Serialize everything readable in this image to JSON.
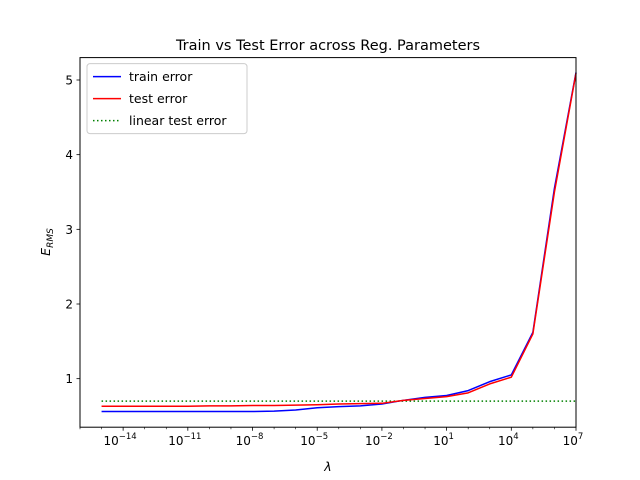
{
  "chart_data": {
    "type": "line",
    "title": "Train vs Test Error across Reg. Parameters",
    "xlabel": "λ",
    "ylabel": {
      "main": "E",
      "sub": "RMS"
    },
    "x_scale": "log",
    "xlim": [
      1e-16,
      10000000.0
    ],
    "ylim": [
      0.35,
      5.3
    ],
    "x_ticks": [
      {
        "value": 1e-14,
        "base": "10",
        "exp": "−14"
      },
      {
        "value": 1e-11,
        "base": "10",
        "exp": "−11"
      },
      {
        "value": 1e-08,
        "base": "10",
        "exp": "−8"
      },
      {
        "value": 1e-05,
        "base": "10",
        "exp": "−5"
      },
      {
        "value": 0.01,
        "base": "10",
        "exp": "−2"
      },
      {
        "value": 10,
        "base": "10",
        "exp": "1"
      },
      {
        "value": 10000.0,
        "base": "10",
        "exp": "4"
      },
      {
        "value": 10000000.0,
        "base": "10",
        "exp": "7"
      }
    ],
    "y_ticks": [
      {
        "value": 1,
        "label": "1"
      },
      {
        "value": 2,
        "label": "2"
      },
      {
        "value": 3,
        "label": "3"
      },
      {
        "value": 4,
        "label": "4"
      },
      {
        "value": 5,
        "label": "5"
      }
    ],
    "grid": false,
    "legend_position": "top-left",
    "x": [
      1e-15,
      1e-14,
      1e-13,
      1e-12,
      1e-11,
      1e-10,
      1e-09,
      1e-08,
      1e-07,
      1e-06,
      1e-05,
      0.0001,
      0.001,
      0.01,
      0.1,
      1,
      10,
      100,
      1000,
      10000,
      100000,
      1000000,
      10000000
    ],
    "series": [
      {
        "name": "train error",
        "color": "#0000ff",
        "dash": "solid",
        "values": [
          0.56,
          0.56,
          0.56,
          0.56,
          0.56,
          0.56,
          0.56,
          0.56,
          0.565,
          0.58,
          0.61,
          0.625,
          0.635,
          0.66,
          0.71,
          0.75,
          0.775,
          0.84,
          0.96,
          1.05,
          1.62,
          3.55,
          5.1
        ]
      },
      {
        "name": "test error",
        "color": "#ff0000",
        "dash": "solid",
        "values": [
          0.63,
          0.63,
          0.63,
          0.63,
          0.63,
          0.635,
          0.635,
          0.64,
          0.64,
          0.645,
          0.65,
          0.66,
          0.665,
          0.67,
          0.71,
          0.735,
          0.76,
          0.81,
          0.93,
          1.02,
          1.6,
          3.5,
          5.09
        ]
      },
      {
        "name": "linear test error",
        "color": "#008000",
        "dash": "dotted",
        "values": [
          0.7,
          0.7,
          0.7,
          0.7,
          0.7,
          0.7,
          0.7,
          0.7,
          0.7,
          0.7,
          0.7,
          0.7,
          0.7,
          0.7,
          0.7,
          0.7,
          0.7,
          0.7,
          0.7,
          0.7,
          0.7,
          0.7,
          0.7
        ]
      }
    ]
  }
}
